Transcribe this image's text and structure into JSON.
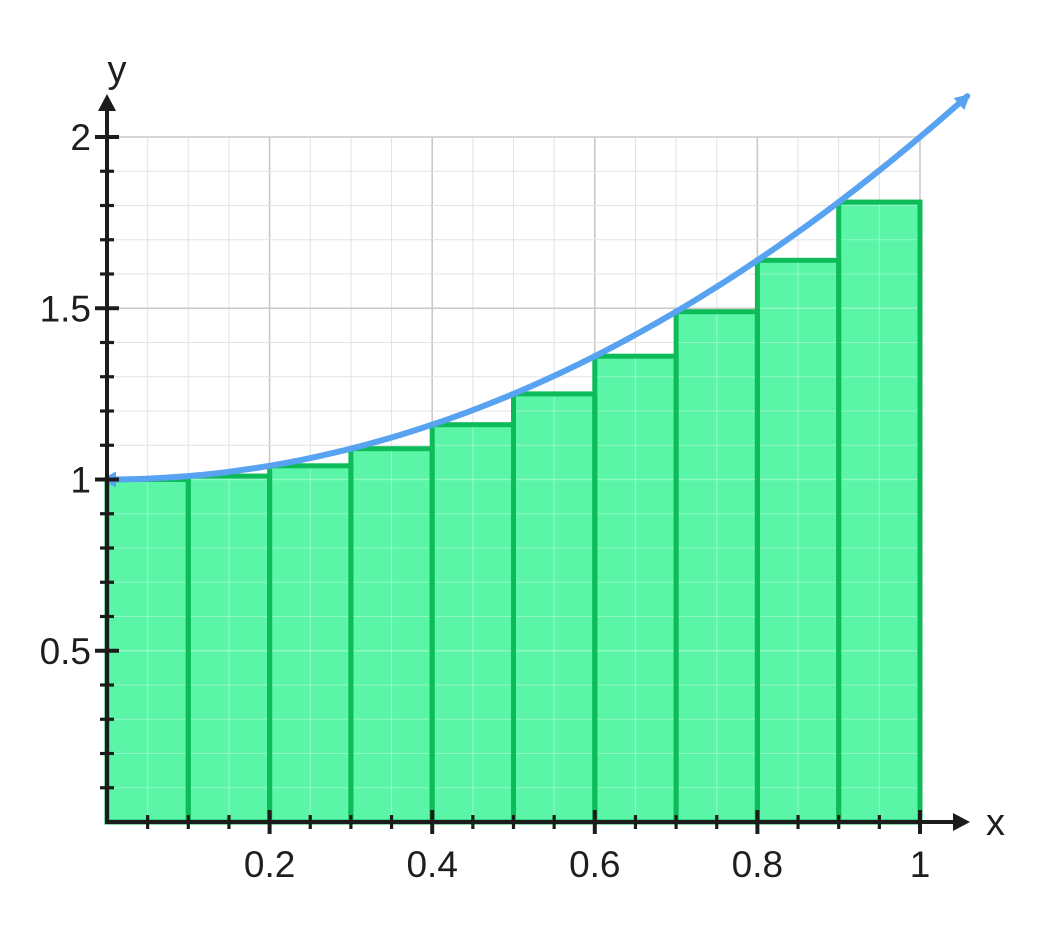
{
  "chart_data": {
    "type": "area",
    "subtype": "riemann-sum",
    "title": "",
    "xlabel": "x",
    "ylabel": "y",
    "xlim": [
      0,
      1.06
    ],
    "ylim": [
      0,
      2.12
    ],
    "grid": {
      "on": true,
      "x_minor_step": 0.05,
      "y_minor_step": 0.1,
      "x_major_step": 0.2,
      "y_major_step": 0.5,
      "x_range": [
        0,
        1.0
      ],
      "y_range": [
        0,
        2.0
      ],
      "minor_color": "#e4e4e4",
      "major_color": "#c9c9c9"
    },
    "x_axis": {
      "major_ticks": [
        0.2,
        0.4,
        0.6,
        0.8,
        1.0
      ],
      "major_tick_labels": [
        "0.2",
        "0.4",
        "0.6",
        "0.8",
        "1"
      ],
      "minor_tick_step": 0.05,
      "minor_tick_max": 1.0
    },
    "y_axis": {
      "major_ticks": [
        0.5,
        1.0,
        1.5,
        2.0
      ],
      "major_tick_labels": [
        "0.5",
        "1",
        "1.5",
        "2"
      ],
      "minor_tick_step": 0.1,
      "minor_tick_max": 2.0
    },
    "riemann_bars": {
      "kind": "left-endpoint rectangles",
      "n": 10,
      "bar_width": 0.1,
      "left_edges": [
        0.0,
        0.1,
        0.2,
        0.3,
        0.4,
        0.5,
        0.6,
        0.7,
        0.8,
        0.9
      ],
      "heights": [
        1.0,
        1.01,
        1.04,
        1.09,
        1.16,
        1.25,
        1.36,
        1.49,
        1.64,
        1.81
      ],
      "fill": "#5bf5a7",
      "stroke": "#0dbb58"
    },
    "curve": {
      "color": "#57a3f1",
      "arrow_both_ends": true,
      "points": [
        [
          0.0,
          1.0
        ],
        [
          0.02,
          1.0004
        ],
        [
          0.04,
          1.0016
        ],
        [
          0.06,
          1.0036
        ],
        [
          0.08,
          1.0064
        ],
        [
          0.1,
          1.01
        ],
        [
          0.12,
          1.0144
        ],
        [
          0.14,
          1.0196
        ],
        [
          0.16,
          1.0256
        ],
        [
          0.18,
          1.0324
        ],
        [
          0.2,
          1.04
        ],
        [
          0.22,
          1.0484
        ],
        [
          0.24,
          1.0576
        ],
        [
          0.26,
          1.0676
        ],
        [
          0.28,
          1.0784
        ],
        [
          0.3,
          1.09
        ],
        [
          0.32,
          1.1024
        ],
        [
          0.34,
          1.1156
        ],
        [
          0.36,
          1.1296
        ],
        [
          0.38,
          1.1444
        ],
        [
          0.4,
          1.16
        ],
        [
          0.42,
          1.1764
        ],
        [
          0.44,
          1.1936
        ],
        [
          0.46,
          1.2116
        ],
        [
          0.48,
          1.2304
        ],
        [
          0.5,
          1.25
        ],
        [
          0.52,
          1.2704
        ],
        [
          0.54,
          1.2916
        ],
        [
          0.56,
          1.3136
        ],
        [
          0.58,
          1.3364
        ],
        [
          0.6,
          1.36
        ],
        [
          0.62,
          1.3844
        ],
        [
          0.64,
          1.4096
        ],
        [
          0.66,
          1.4356
        ],
        [
          0.68,
          1.4624
        ],
        [
          0.7,
          1.49
        ],
        [
          0.72,
          1.5184
        ],
        [
          0.74,
          1.5476
        ],
        [
          0.76,
          1.5776
        ],
        [
          0.78,
          1.6084
        ],
        [
          0.8,
          1.64
        ],
        [
          0.82,
          1.6724
        ],
        [
          0.84,
          1.7056
        ],
        [
          0.86,
          1.7396
        ],
        [
          0.88,
          1.7744
        ],
        [
          0.9,
          1.81
        ],
        [
          0.92,
          1.8464
        ],
        [
          0.94,
          1.8836
        ],
        [
          0.96,
          1.9216
        ],
        [
          0.98,
          1.9604
        ],
        [
          1.0,
          2.0
        ],
        [
          1.02,
          2.0404
        ],
        [
          1.04,
          2.0816
        ],
        [
          1.058,
          2.1194
        ]
      ]
    },
    "colors": {
      "axis": "#1c1c1c",
      "tick_label": "#1e1e1e"
    }
  }
}
